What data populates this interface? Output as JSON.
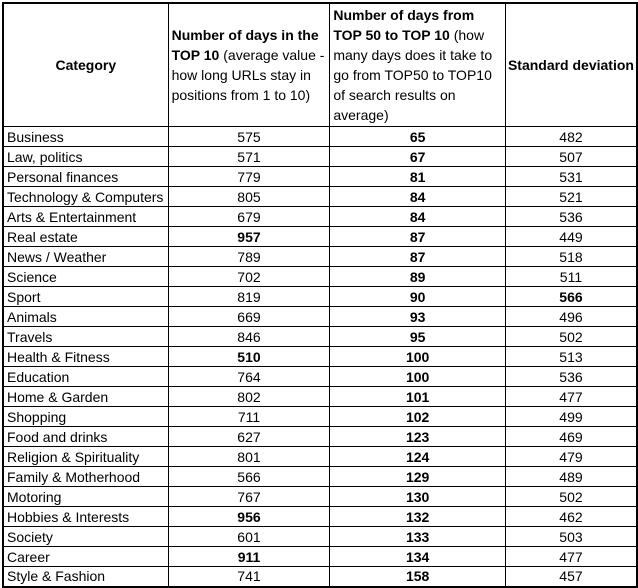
{
  "chart_data": {
    "type": "table",
    "colors": {
      "border": "#000000",
      "text": "#000000",
      "background": "#ffffff"
    },
    "columns": [
      {
        "key": "category",
        "title_bold": "Category",
        "title_rest": ""
      },
      {
        "key": "days_in_top10",
        "title_bold": "Number of days in the TOP 10",
        "title_rest": " (average value - how long URLs stay in positions from 1 to 10)"
      },
      {
        "key": "days_top50_to_top10",
        "title_bold": "Number of days from TOP 50 to TOP 10",
        "title_rest": " (how many days does it take to go from TOP50 to TOP10 of search results on average)",
        "always_bold_values": true
      },
      {
        "key": "std_dev",
        "title_bold": "Standard deviation",
        "title_rest": ""
      }
    ],
    "rows": [
      {
        "category": "Business",
        "days_in_top10": 575,
        "days_top50_to_top10": 65,
        "std_dev": 482
      },
      {
        "category": "Law, politics",
        "days_in_top10": 571,
        "days_top50_to_top10": 67,
        "std_dev": 507
      },
      {
        "category": "Personal finances",
        "days_in_top10": 779,
        "days_top50_to_top10": 81,
        "std_dev": 531
      },
      {
        "category": "Technology & Computers",
        "days_in_top10": 805,
        "days_top50_to_top10": 84,
        "std_dev": 521
      },
      {
        "category": "Arts & Entertainment",
        "days_in_top10": 679,
        "days_top50_to_top10": 84,
        "std_dev": 536
      },
      {
        "category": "Real estate",
        "days_in_top10": 957,
        "days_top50_to_top10": 87,
        "std_dev": 449,
        "bold_cols": [
          "days_in_top10"
        ]
      },
      {
        "category": "News / Weather",
        "days_in_top10": 789,
        "days_top50_to_top10": 87,
        "std_dev": 518
      },
      {
        "category": "Science",
        "days_in_top10": 702,
        "days_top50_to_top10": 89,
        "std_dev": 511
      },
      {
        "category": "Sport",
        "days_in_top10": 819,
        "days_top50_to_top10": 90,
        "std_dev": 566,
        "bold_cols": [
          "std_dev"
        ]
      },
      {
        "category": "Animals",
        "days_in_top10": 669,
        "days_top50_to_top10": 93,
        "std_dev": 496
      },
      {
        "category": "Travels",
        "days_in_top10": 846,
        "days_top50_to_top10": 95,
        "std_dev": 502
      },
      {
        "category": "Health & Fitness",
        "days_in_top10": 510,
        "days_top50_to_top10": 100,
        "std_dev": 513,
        "bold_cols": [
          "days_in_top10"
        ]
      },
      {
        "category": "Education",
        "days_in_top10": 764,
        "days_top50_to_top10": 100,
        "std_dev": 536
      },
      {
        "category": "Home & Garden",
        "days_in_top10": 802,
        "days_top50_to_top10": 101,
        "std_dev": 477
      },
      {
        "category": "Shopping",
        "days_in_top10": 711,
        "days_top50_to_top10": 102,
        "std_dev": 499
      },
      {
        "category": "Food and drinks",
        "days_in_top10": 627,
        "days_top50_to_top10": 123,
        "std_dev": 469
      },
      {
        "category": "Religion & Spirituality",
        "days_in_top10": 801,
        "days_top50_to_top10": 124,
        "std_dev": 479
      },
      {
        "category": "Family & Motherhood",
        "days_in_top10": 566,
        "days_top50_to_top10": 129,
        "std_dev": 489
      },
      {
        "category": "Motoring",
        "days_in_top10": 767,
        "days_top50_to_top10": 130,
        "std_dev": 502
      },
      {
        "category": "Hobbies & Interests",
        "days_in_top10": 956,
        "days_top50_to_top10": 132,
        "std_dev": 462,
        "bold_cols": [
          "days_in_top10"
        ]
      },
      {
        "category": "Society",
        "days_in_top10": 601,
        "days_top50_to_top10": 133,
        "std_dev": 503
      },
      {
        "category": "Career",
        "days_in_top10": 911,
        "days_top50_to_top10": 134,
        "std_dev": 477,
        "bold_cols": [
          "days_in_top10"
        ]
      },
      {
        "category": "Style & Fashion",
        "days_in_top10": 741,
        "days_top50_to_top10": 158,
        "std_dev": 457
      }
    ]
  }
}
